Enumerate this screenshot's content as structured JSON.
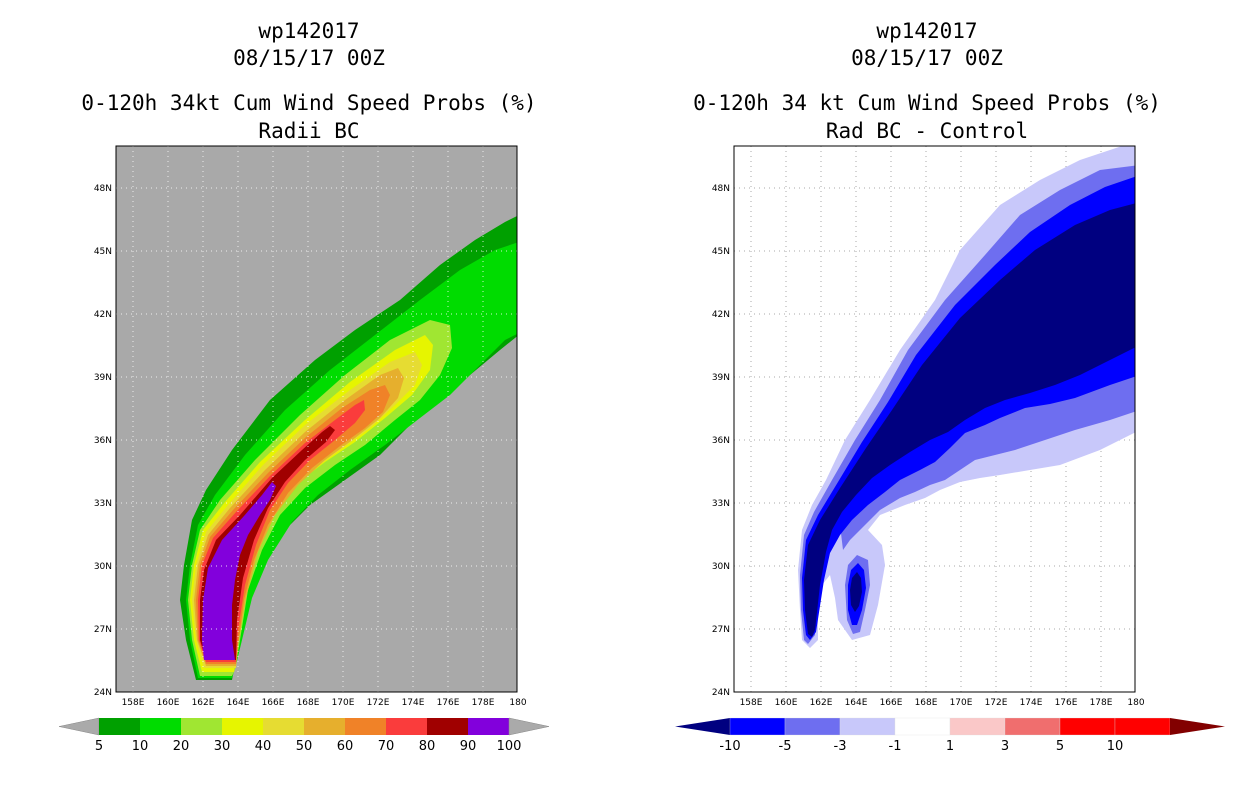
{
  "left_panel": {
    "storm_id": "wp142017",
    "datetime": "08/15/17 00Z",
    "title": "0-120h 34kt Cum Wind Speed Probs (%)",
    "subtitle": "Radii BC",
    "colorbar": {
      "labels": [
        "5",
        "10",
        "20",
        "30",
        "40",
        "50",
        "60",
        "70",
        "80",
        "90",
        "100"
      ],
      "colors": [
        "#00a000",
        "#00dc00",
        "#a0e632",
        "#e6f500",
        "#e6dc32",
        "#e6af2d",
        "#f08228",
        "#fa3c3c",
        "#a00000",
        "#8200dc"
      ],
      "extend_color": "#aaaaaa"
    },
    "background_color": "#a9a9a9",
    "lat_labels": [
      "48N",
      "45N",
      "42N",
      "39N",
      "36N",
      "33N",
      "30N",
      "27N",
      "24N"
    ],
    "lon_labels": [
      "158E",
      "160E",
      "162E",
      "164E",
      "166E",
      "168E",
      "170E",
      "172E",
      "174E",
      "176E",
      "178E",
      "180"
    ]
  },
  "right_panel": {
    "storm_id": "wp142017",
    "datetime": "08/15/17 00Z",
    "title": "0-120h 34 kt Cum Wind Speed Probs (%)",
    "subtitle": "Rad BC - Control",
    "colorbar": {
      "labels": [
        "-10",
        "-5",
        "-3",
        "-1",
        "1",
        "3",
        "5",
        "10"
      ],
      "colors": [
        "#000080",
        "#0000ff",
        "#6e6ef0",
        "#c8c8fa",
        "#ffffff",
        "#fac8c8",
        "#f06e6e",
        "#ff0000",
        "#ff0000",
        "#820000"
      ]
    },
    "background_color": "#ffffff",
    "lat_labels": [
      "48N",
      "45N",
      "42N",
      "39N",
      "36N",
      "33N",
      "30N",
      "27N",
      "24N"
    ],
    "lon_labels": [
      "158E",
      "160E",
      "162E",
      "164E",
      "166E",
      "168E",
      "170E",
      "172E",
      "174E",
      "176E",
      "178E",
      "180"
    ]
  },
  "map": {
    "lat_min": 24,
    "lat_max": 50,
    "lon_min": 157,
    "lon_max": 180
  }
}
